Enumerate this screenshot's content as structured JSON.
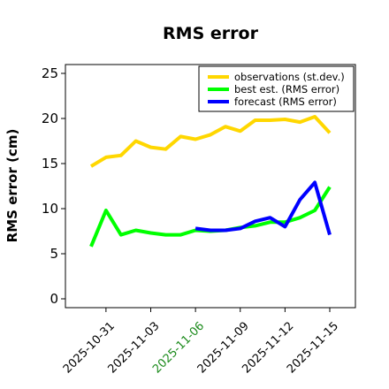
{
  "chart_data": {
    "type": "line",
    "title": "RMS error",
    "xlabel": "",
    "ylabel": "RMS error (cm)",
    "ylim": [
      0,
      25
    ],
    "yticks": [
      "0",
      "5",
      "10",
      "15",
      "20",
      "25"
    ],
    "xticks": [
      "2025-10-31",
      "2025-11-03",
      "2025-11-06",
      "2025-11-09",
      "2025-11-12",
      "2025-11-15"
    ],
    "highlighted_tick": "2025-11-06",
    "highlight_color": "#1a8a1a",
    "x": [
      "2025-10-30",
      "2025-10-31",
      "2025-11-01",
      "2025-11-02",
      "2025-11-03",
      "2025-11-04",
      "2025-11-05",
      "2025-11-06",
      "2025-11-07",
      "2025-11-08",
      "2025-11-09",
      "2025-11-10",
      "2025-11-11",
      "2025-11-12",
      "2025-11-13",
      "2025-11-14",
      "2025-11-15"
    ],
    "legend_position": "top-right",
    "grid": false,
    "series": [
      {
        "name": "observations (st.dev.)",
        "color": "#FFD700",
        "values": [
          14.7,
          15.7,
          15.9,
          17.5,
          16.8,
          16.6,
          18.0,
          17.7,
          18.2,
          19.1,
          18.6,
          19.8,
          19.8,
          19.9,
          19.6,
          20.2,
          18.4
        ]
      },
      {
        "name": "best est. (RMS error)",
        "color": "#00FF00",
        "values": [
          5.8,
          9.8,
          7.1,
          7.6,
          7.3,
          7.1,
          7.1,
          7.6,
          7.5,
          7.6,
          7.9,
          8.1,
          8.5,
          8.5,
          9.0,
          9.8,
          12.4
        ]
      },
      {
        "name": "forecast (RMS error)",
        "color": "#0000FF",
        "values": [
          null,
          null,
          null,
          null,
          null,
          null,
          null,
          7.8,
          7.6,
          7.6,
          7.8,
          8.6,
          9.0,
          8.0,
          11.0,
          12.9,
          7.1
        ]
      }
    ]
  }
}
